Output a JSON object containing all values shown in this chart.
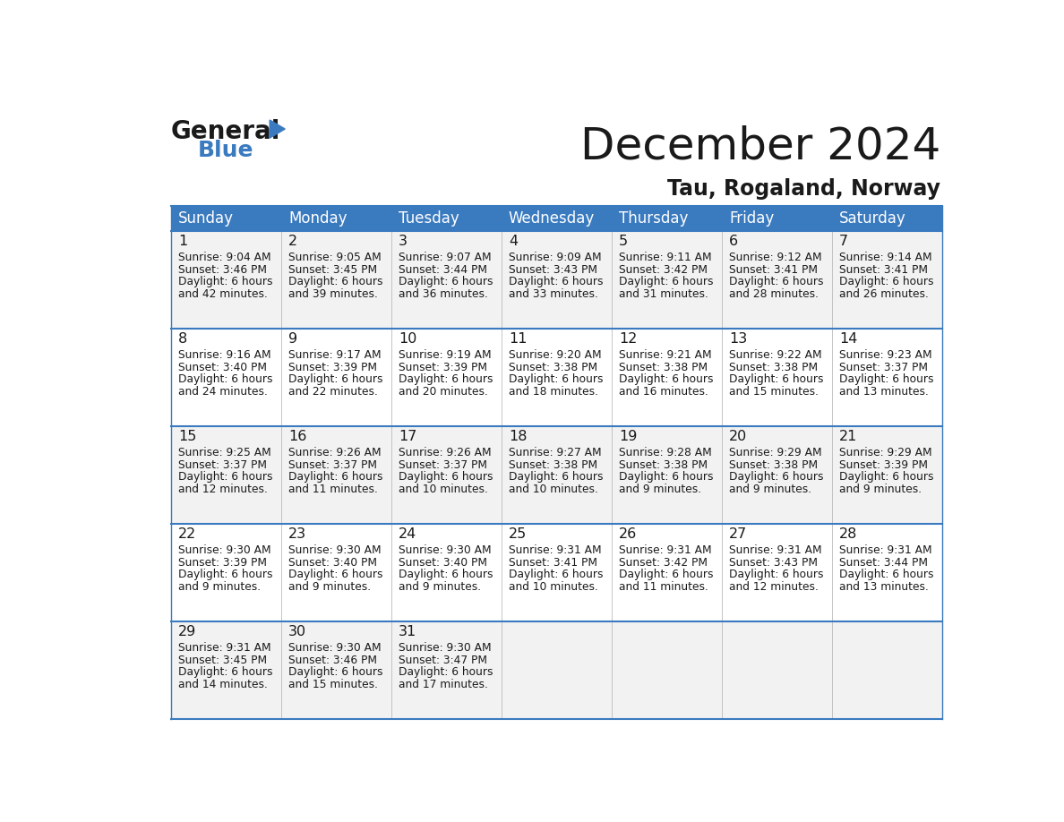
{
  "title": "December 2024",
  "subtitle": "Tau, Rogaland, Norway",
  "header_bg": "#3a7abf",
  "header_text": "#ffffff",
  "row_bg_odd": "#f2f2f2",
  "row_bg_even": "#ffffff",
  "border_color": "#3a7abf",
  "text_color": "#1a1a1a",
  "days_of_week": [
    "Sunday",
    "Monday",
    "Tuesday",
    "Wednesday",
    "Thursday",
    "Friday",
    "Saturday"
  ],
  "weeks": [
    [
      {
        "day": "1",
        "sunrise": "9:04 AM",
        "sunset": "3:46 PM",
        "daylight": "6 hours",
        "daylight2": "and 42 minutes."
      },
      {
        "day": "2",
        "sunrise": "9:05 AM",
        "sunset": "3:45 PM",
        "daylight": "6 hours",
        "daylight2": "and 39 minutes."
      },
      {
        "day": "3",
        "sunrise": "9:07 AM",
        "sunset": "3:44 PM",
        "daylight": "6 hours",
        "daylight2": "and 36 minutes."
      },
      {
        "day": "4",
        "sunrise": "9:09 AM",
        "sunset": "3:43 PM",
        "daylight": "6 hours",
        "daylight2": "and 33 minutes."
      },
      {
        "day": "5",
        "sunrise": "9:11 AM",
        "sunset": "3:42 PM",
        "daylight": "6 hours",
        "daylight2": "and 31 minutes."
      },
      {
        "day": "6",
        "sunrise": "9:12 AM",
        "sunset": "3:41 PM",
        "daylight": "6 hours",
        "daylight2": "and 28 minutes."
      },
      {
        "day": "7",
        "sunrise": "9:14 AM",
        "sunset": "3:41 PM",
        "daylight": "6 hours",
        "daylight2": "and 26 minutes."
      }
    ],
    [
      {
        "day": "8",
        "sunrise": "9:16 AM",
        "sunset": "3:40 PM",
        "daylight": "6 hours",
        "daylight2": "and 24 minutes."
      },
      {
        "day": "9",
        "sunrise": "9:17 AM",
        "sunset": "3:39 PM",
        "daylight": "6 hours",
        "daylight2": "and 22 minutes."
      },
      {
        "day": "10",
        "sunrise": "9:19 AM",
        "sunset": "3:39 PM",
        "daylight": "6 hours",
        "daylight2": "and 20 minutes."
      },
      {
        "day": "11",
        "sunrise": "9:20 AM",
        "sunset": "3:38 PM",
        "daylight": "6 hours",
        "daylight2": "and 18 minutes."
      },
      {
        "day": "12",
        "sunrise": "9:21 AM",
        "sunset": "3:38 PM",
        "daylight": "6 hours",
        "daylight2": "and 16 minutes."
      },
      {
        "day": "13",
        "sunrise": "9:22 AM",
        "sunset": "3:38 PM",
        "daylight": "6 hours",
        "daylight2": "and 15 minutes."
      },
      {
        "day": "14",
        "sunrise": "9:23 AM",
        "sunset": "3:37 PM",
        "daylight": "6 hours",
        "daylight2": "and 13 minutes."
      }
    ],
    [
      {
        "day": "15",
        "sunrise": "9:25 AM",
        "sunset": "3:37 PM",
        "daylight": "6 hours",
        "daylight2": "and 12 minutes."
      },
      {
        "day": "16",
        "sunrise": "9:26 AM",
        "sunset": "3:37 PM",
        "daylight": "6 hours",
        "daylight2": "and 11 minutes."
      },
      {
        "day": "17",
        "sunrise": "9:26 AM",
        "sunset": "3:37 PM",
        "daylight": "6 hours",
        "daylight2": "and 10 minutes."
      },
      {
        "day": "18",
        "sunrise": "9:27 AM",
        "sunset": "3:38 PM",
        "daylight": "6 hours",
        "daylight2": "and 10 minutes."
      },
      {
        "day": "19",
        "sunrise": "9:28 AM",
        "sunset": "3:38 PM",
        "daylight": "6 hours",
        "daylight2": "and 9 minutes."
      },
      {
        "day": "20",
        "sunrise": "9:29 AM",
        "sunset": "3:38 PM",
        "daylight": "6 hours",
        "daylight2": "and 9 minutes."
      },
      {
        "day": "21",
        "sunrise": "9:29 AM",
        "sunset": "3:39 PM",
        "daylight": "6 hours",
        "daylight2": "and 9 minutes."
      }
    ],
    [
      {
        "day": "22",
        "sunrise": "9:30 AM",
        "sunset": "3:39 PM",
        "daylight": "6 hours",
        "daylight2": "and 9 minutes."
      },
      {
        "day": "23",
        "sunrise": "9:30 AM",
        "sunset": "3:40 PM",
        "daylight": "6 hours",
        "daylight2": "and 9 minutes."
      },
      {
        "day": "24",
        "sunrise": "9:30 AM",
        "sunset": "3:40 PM",
        "daylight": "6 hours",
        "daylight2": "and 9 minutes."
      },
      {
        "day": "25",
        "sunrise": "9:31 AM",
        "sunset": "3:41 PM",
        "daylight": "6 hours",
        "daylight2": "and 10 minutes."
      },
      {
        "day": "26",
        "sunrise": "9:31 AM",
        "sunset": "3:42 PM",
        "daylight": "6 hours",
        "daylight2": "and 11 minutes."
      },
      {
        "day": "27",
        "sunrise": "9:31 AM",
        "sunset": "3:43 PM",
        "daylight": "6 hours",
        "daylight2": "and 12 minutes."
      },
      {
        "day": "28",
        "sunrise": "9:31 AM",
        "sunset": "3:44 PM",
        "daylight": "6 hours",
        "daylight2": "and 13 minutes."
      }
    ],
    [
      {
        "day": "29",
        "sunrise": "9:31 AM",
        "sunset": "3:45 PM",
        "daylight": "6 hours",
        "daylight2": "and 14 minutes."
      },
      {
        "day": "30",
        "sunrise": "9:30 AM",
        "sunset": "3:46 PM",
        "daylight": "6 hours",
        "daylight2": "and 15 minutes."
      },
      {
        "day": "31",
        "sunrise": "9:30 AM",
        "sunset": "3:47 PM",
        "daylight": "6 hours",
        "daylight2": "and 17 minutes."
      },
      null,
      null,
      null,
      null
    ]
  ]
}
